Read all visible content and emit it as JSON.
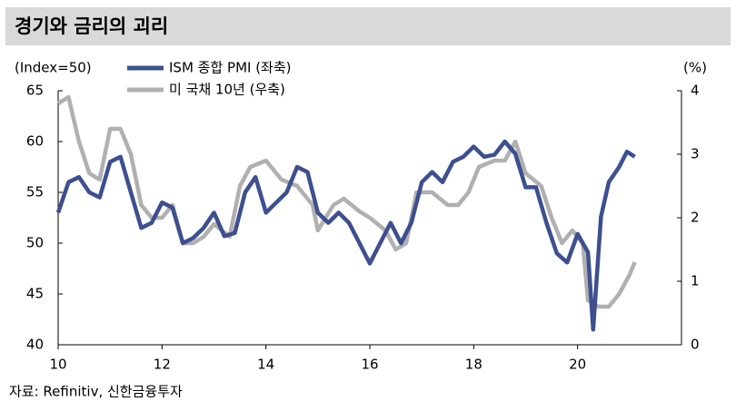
{
  "chart_data": {
    "type": "line",
    "title": "경기와 금리의 괴리",
    "y_label": "(Index=50)",
    "y2_label": "(%)",
    "source": "자료: Refinitiv, 신한금융투자",
    "xlim": [
      10,
      22
    ],
    "xticks": [
      10,
      12,
      14,
      16,
      18,
      20
    ],
    "ylim": [
      40,
      65
    ],
    "yticks": [
      40,
      45,
      50,
      55,
      60,
      65
    ],
    "y2lim": [
      0,
      4
    ],
    "y2ticks": [
      0,
      1,
      2,
      3,
      4
    ],
    "series": [
      {
        "name": "ISM 종합 PMI (좌축)",
        "color": "#3d4f8f",
        "axis": "y",
        "x": [
          10.0,
          10.2,
          10.4,
          10.6,
          10.8,
          11.0,
          11.2,
          11.4,
          11.6,
          11.8,
          12.0,
          12.2,
          12.4,
          12.6,
          12.8,
          13.0,
          13.2,
          13.4,
          13.6,
          13.8,
          14.0,
          14.2,
          14.4,
          14.6,
          14.8,
          15.0,
          15.2,
          15.4,
          15.6,
          15.8,
          16.0,
          16.2,
          16.4,
          16.6,
          16.8,
          17.0,
          17.2,
          17.4,
          17.6,
          17.8,
          18.0,
          18.2,
          18.4,
          18.6,
          18.8,
          19.0,
          19.2,
          19.4,
          19.6,
          19.8,
          20.0,
          20.2,
          20.3,
          20.45,
          20.6,
          20.8,
          20.95,
          21.1
        ],
        "values": [
          53,
          56,
          56.5,
          55,
          54.5,
          58,
          58.5,
          55,
          51.5,
          52,
          54,
          53.5,
          50,
          50.5,
          51.5,
          53,
          50.7,
          51,
          55,
          56.5,
          53,
          54,
          55,
          57.5,
          57,
          53,
          52,
          53,
          52,
          50,
          48,
          50,
          52,
          50,
          52,
          56,
          57,
          56,
          58,
          58.5,
          59.5,
          58.5,
          58.7,
          60,
          58.8,
          55.5,
          55.5,
          52,
          49,
          48.1,
          50.9,
          49.1,
          41.5,
          52.6,
          56,
          57.5,
          59,
          58.5
        ]
      },
      {
        "name": "미 국채 10년 (우축)",
        "color": "#b0b0b0",
        "axis": "y2",
        "x": [
          10.0,
          10.2,
          10.4,
          10.6,
          10.8,
          11.0,
          11.2,
          11.4,
          11.6,
          11.8,
          12.0,
          12.2,
          12.4,
          12.6,
          12.8,
          13.0,
          13.3,
          13.5,
          13.7,
          14.0,
          14.3,
          14.6,
          14.9,
          15.0,
          15.3,
          15.5,
          15.8,
          16.0,
          16.3,
          16.5,
          16.7,
          16.9,
          17.2,
          17.5,
          17.7,
          17.9,
          18.1,
          18.4,
          18.6,
          18.8,
          19.0,
          19.3,
          19.5,
          19.7,
          19.9,
          20.1,
          20.2,
          20.4,
          20.6,
          20.8,
          21.0,
          21.1
        ],
        "values": [
          3.8,
          3.9,
          3.2,
          2.7,
          2.6,
          3.4,
          3.4,
          3.0,
          2.2,
          2.0,
          2.0,
          2.2,
          1.6,
          1.6,
          1.7,
          1.9,
          1.7,
          2.5,
          2.8,
          2.9,
          2.6,
          2.5,
          2.2,
          1.8,
          2.2,
          2.3,
          2.1,
          2.0,
          1.8,
          1.5,
          1.6,
          2.4,
          2.4,
          2.2,
          2.2,
          2.4,
          2.8,
          2.9,
          2.9,
          3.2,
          2.7,
          2.5,
          2.0,
          1.6,
          1.8,
          1.6,
          0.7,
          0.6,
          0.6,
          0.8,
          1.1,
          1.3
        ]
      }
    ]
  }
}
